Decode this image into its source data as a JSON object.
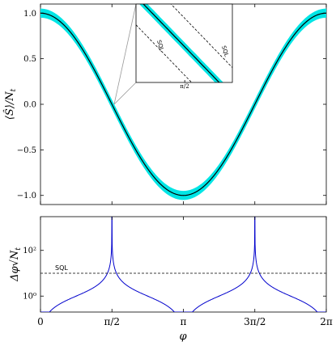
{
  "chart_data": [
    {
      "type": "line",
      "panel": "top",
      "ylabel": "⟨Ŝ⟩/N_t",
      "x_range": [
        0,
        6.2832
      ],
      "ylim": [
        -1.1,
        1.1
      ],
      "y_ticks": [
        {
          "value": 1.0,
          "label": "1.0"
        },
        {
          "value": 0.5,
          "label": "0.5"
        },
        {
          "value": 0.0,
          "label": "0.0"
        },
        {
          "value": -0.5,
          "label": "−0.5"
        },
        {
          "value": -1.0,
          "label": "−1.0"
        }
      ],
      "series": [
        {
          "function": "cos(phi)",
          "color": "#000000"
        }
      ],
      "band": {
        "halfwidth": 0.05,
        "color": "#00e5e5"
      },
      "inset": {
        "x_range": [
          1.5,
          1.64
        ],
        "y_range": [
          -0.05,
          0.06
        ],
        "x_tick": {
          "value": 1.5708,
          "label": "π/2"
        },
        "annotations": [
          "SQL",
          "SQL"
        ],
        "sql_offset": 0.04
      }
    },
    {
      "type": "line",
      "panel": "bottom",
      "xlabel": "φ",
      "ylabel": "Δφ√N_t",
      "x_range": [
        0,
        6.2832
      ],
      "y_scale": "log",
      "ylim": [
        0.2,
        3000
      ],
      "y_ticks": [
        {
          "value": 1,
          "label": "10⁰"
        },
        {
          "value": 100,
          "label": "10²"
        }
      ],
      "x_ticks": [
        {
          "value": 0,
          "label": "0"
        },
        {
          "value": 1.5708,
          "label": "π/2"
        },
        {
          "value": 3.1416,
          "label": "π"
        },
        {
          "value": 4.7124,
          "label": "3π/2"
        },
        {
          "value": 6.2832,
          "label": "2π"
        }
      ],
      "series": [
        {
          "function": "|tan(phi)|",
          "color": "#0000cc"
        }
      ],
      "reference_line": {
        "label": "SQL",
        "value": 10,
        "style": "dashed"
      }
    }
  ]
}
